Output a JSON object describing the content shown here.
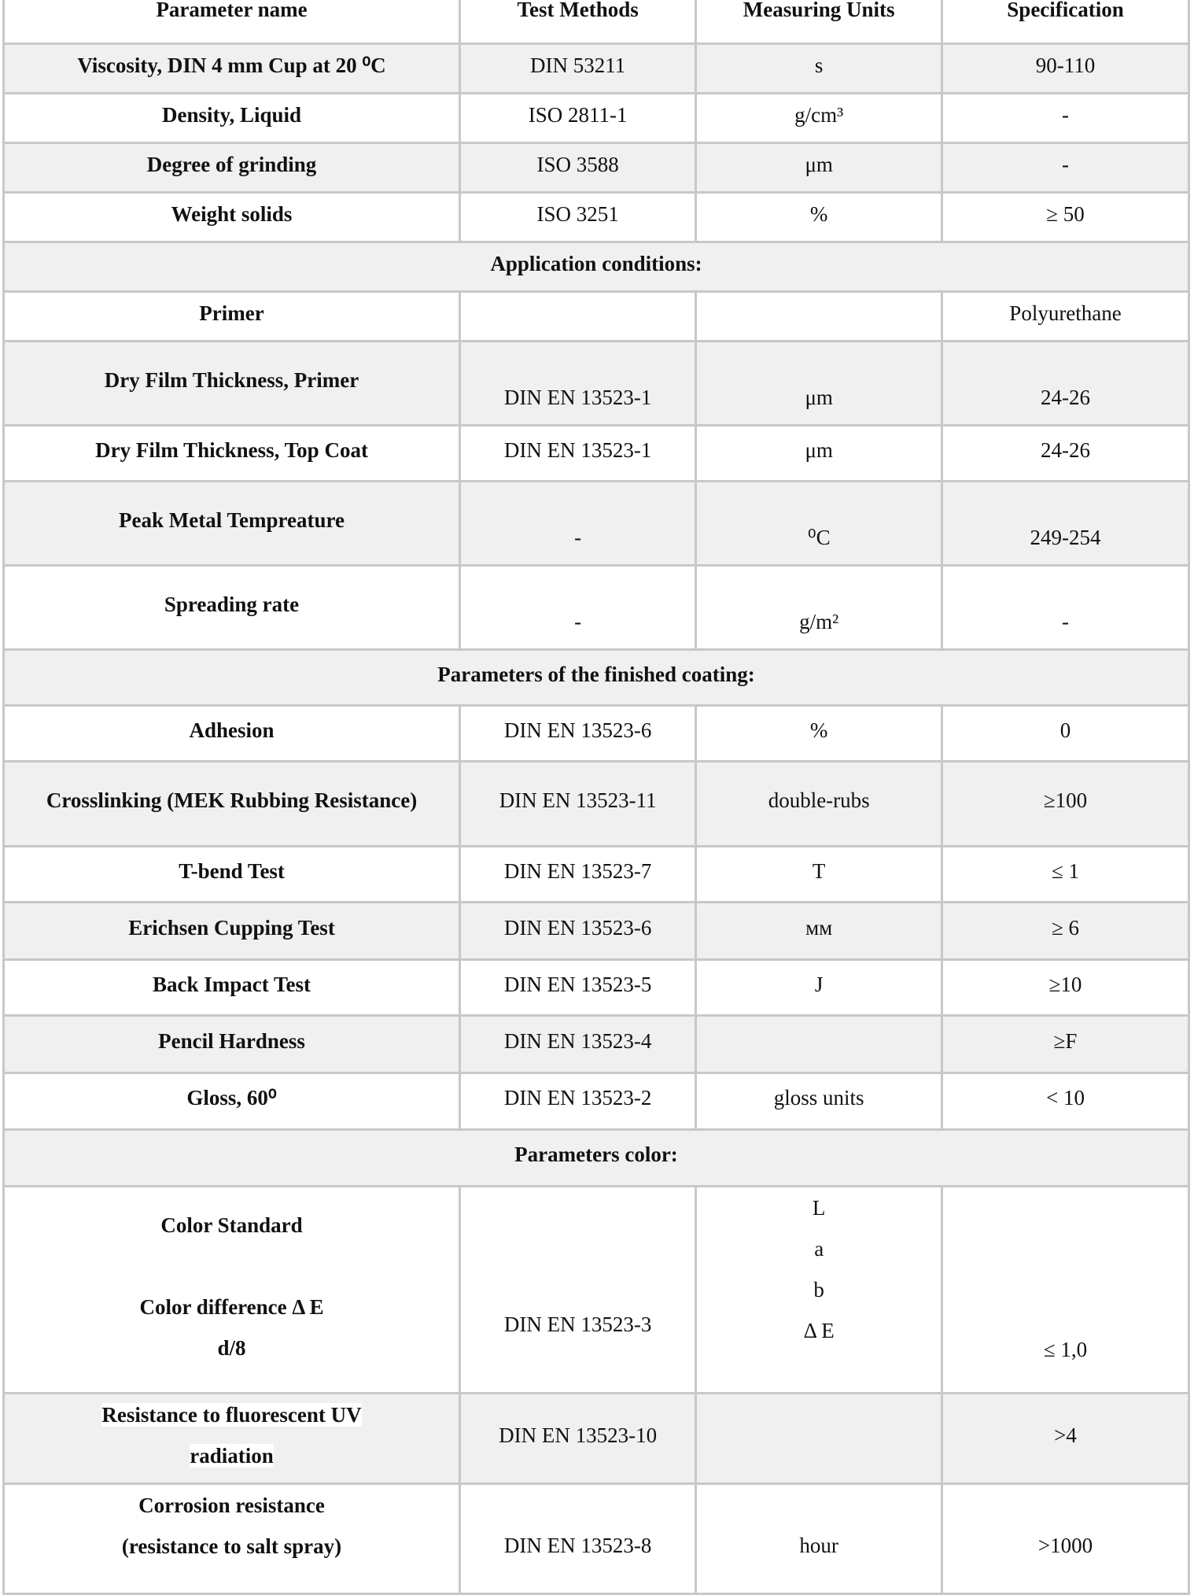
{
  "headers": [
    "Parameter name",
    "Test Methods",
    "Measuring Units",
    "Specification"
  ],
  "rows": [
    {
      "cells": [
        "Viscosity, DIN 4 mm Cup at 20 ⁰C",
        "DIN 53211",
        "s",
        "90-110"
      ]
    },
    {
      "cells": [
        "Density, Liquid",
        "ISO 2811-1",
        "g/cm³",
        "-"
      ]
    },
    {
      "cells": [
        "Degree of grinding",
        "ISO 3588",
        "μm",
        "-"
      ]
    },
    {
      "cells": [
        "Weight solids",
        "ISO 3251",
        "%",
        "≥ 50"
      ]
    },
    {
      "section": "Application conditions:"
    },
    {
      "cells": [
        "Primer",
        "",
        "",
        "Polyurethane"
      ]
    },
    {
      "cells": [
        "Dry Film Thickness, Primer",
        "DIN EN 13523-1",
        "μm",
        "24-26"
      ]
    },
    {
      "cells": [
        "Dry Film Thickness, Top Coat",
        "DIN EN 13523-1",
        "μm",
        "24-26"
      ]
    },
    {
      "cells": [
        "Peak Metal Tempreature",
        "-",
        "⁰C",
        "249-254"
      ]
    },
    {
      "cells": [
        "Spreading rate",
        "-",
        "g/m²",
        "-"
      ]
    },
    {
      "section": "Parameters of the finished coating:"
    },
    {
      "cells": [
        "Adhesion",
        "DIN EN 13523-6",
        "%",
        "0"
      ]
    },
    {
      "cells": [
        "Crosslinking (MEK Rubbing Resistance)",
        "DIN EN 13523-11",
        "double-rubs",
        "≥100"
      ]
    },
    {
      "cells": [
        "T-bend Test",
        "DIN EN 13523-7",
        "T",
        "≤ 1"
      ]
    },
    {
      "cells": [
        "Erichsen Cupping Test",
        "DIN EN 13523-6",
        "мм",
        "≥ 6"
      ]
    },
    {
      "cells": [
        "Back Impact Test",
        "DIN EN 13523-5",
        "J",
        "≥10"
      ]
    },
    {
      "cells": [
        "Pencil Hardness",
        "DIN EN 13523-4",
        "",
        "≥F"
      ]
    },
    {
      "cells": [
        "Gloss, 60⁰",
        "DIN EN 13523-2",
        "gloss units",
        "< 10"
      ]
    },
    {
      "section": "Parameters color:"
    },
    {
      "cells": [
        [
          "Color Standard",
          "",
          "Color difference Δ E",
          "d/8"
        ],
        "DIN EN 13523-3",
        [
          "L",
          "a",
          "b",
          "Δ E"
        ],
        "≤ 1,0"
      ]
    },
    {
      "cells": [
        [
          "Resistance to fluorescent UV",
          "radiation"
        ],
        "DIN EN 13523-10",
        "",
        ">4"
      ]
    },
    {
      "cells": [
        [
          "Corrosion resistance",
          "(resistance to salt spray)"
        ],
        "DIN EN 13523-8",
        "hour",
        ">1000"
      ]
    }
  ]
}
